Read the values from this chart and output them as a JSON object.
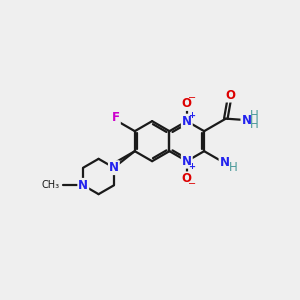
{
  "background_color": "#efefef",
  "bond_color": "#1a1a1a",
  "bond_width": 1.6,
  "atom_colors": {
    "N": "#2222ee",
    "O": "#dd0000",
    "F": "#cc00cc",
    "H": "#4a9a9a",
    "C": "#1a1a1a"
  },
  "font_size": 8.5,
  "charge_size": 6.0
}
